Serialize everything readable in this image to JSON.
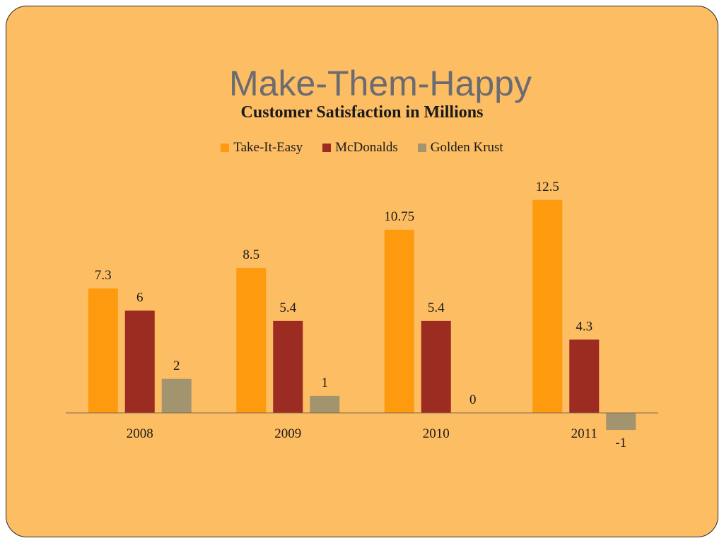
{
  "slide": {
    "title": "Make-Them-Happy"
  },
  "chart_data": {
    "type": "bar",
    "title": "Customer Satisfaction in Millions",
    "categories": [
      "2008",
      "2009",
      "2010",
      "2011"
    ],
    "series": [
      {
        "name": "Take-It-Easy",
        "color": "#fd9a0e",
        "values": [
          7.3,
          8.5,
          10.75,
          12.5
        ],
        "labels": [
          "7.3",
          "8.5",
          "10.75",
          "12.5"
        ]
      },
      {
        "name": "McDonalds",
        "color": "#9c2c22",
        "values": [
          6,
          5.4,
          5.4,
          4.3
        ],
        "labels": [
          "6",
          "5.4",
          "5.4",
          "4.3"
        ]
      },
      {
        "name": "Golden Krust",
        "color": "#a39470",
        "values": [
          2,
          1,
          0,
          -1
        ],
        "labels": [
          "2",
          "1",
          "0",
          "-1"
        ]
      }
    ],
    "legend": "top",
    "grid": false
  }
}
